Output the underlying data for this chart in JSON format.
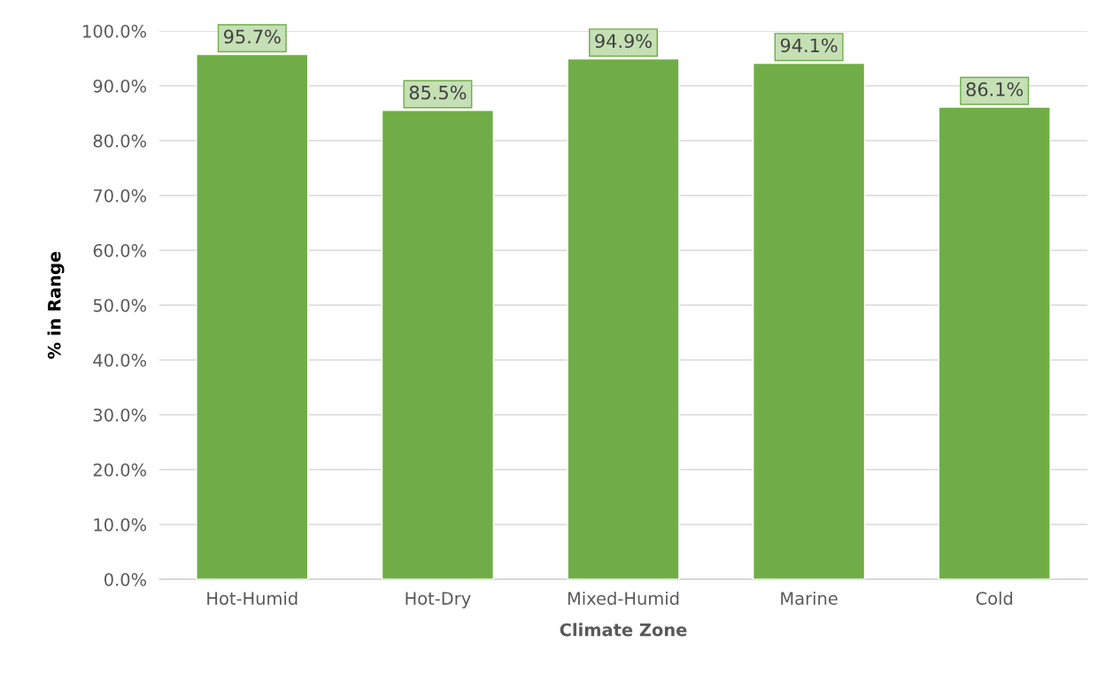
{
  "chart_data": {
    "type": "bar",
    "xlabel": "Climate Zone",
    "ylabel": "% in Range",
    "categories": [
      "Hot-Humid",
      "Hot-Dry",
      "Mixed-Humid",
      "Marine",
      "Cold"
    ],
    "values": [
      95.7,
      85.5,
      94.9,
      94.1,
      86.1
    ],
    "value_labels": [
      "95.7%",
      "85.5%",
      "94.9%",
      "94.1%",
      "86.1%"
    ],
    "color": "#70ad47",
    "ylim": [
      0,
      100
    ],
    "yticks": [
      {
        "value": 0,
        "label": "0.0%"
      },
      {
        "value": 10,
        "label": "10.0%"
      },
      {
        "value": 20,
        "label": "20.0%"
      },
      {
        "value": 30,
        "label": "30.0%"
      },
      {
        "value": 40,
        "label": "40.0%"
      },
      {
        "value": 50,
        "label": "50.0%"
      },
      {
        "value": 60,
        "label": "60.0%"
      },
      {
        "value": 70,
        "label": "70.0%"
      },
      {
        "value": 80,
        "label": "80.0%"
      },
      {
        "value": 90,
        "label": "90.0%"
      },
      {
        "value": 100,
        "label": "100.0%"
      }
    ],
    "grid": "y"
  }
}
